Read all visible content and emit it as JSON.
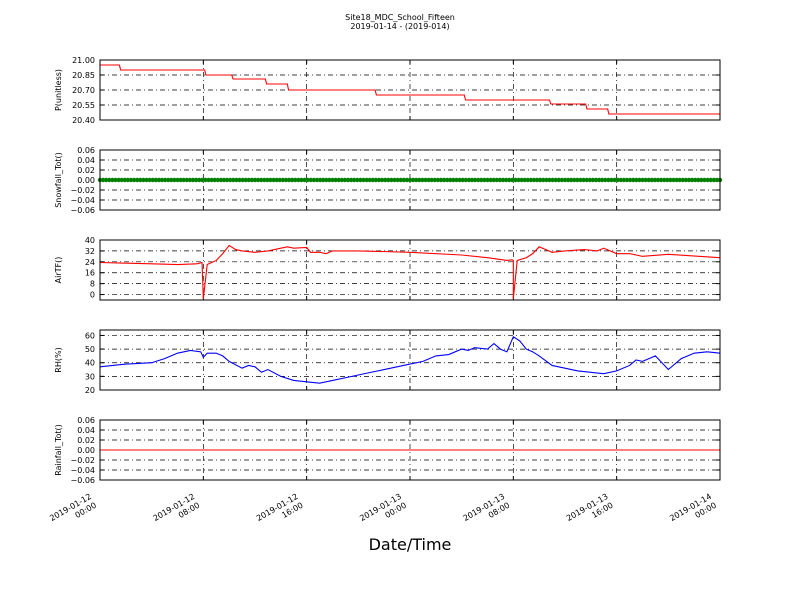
{
  "title": "Site18_MDC_School_Fifteen",
  "subtitle": "2019-01-14 - (2019-014)",
  "xlabel": "Date/Time",
  "x_ticks": [
    [
      "2019-01-12",
      "00:00"
    ],
    [
      "2019-01-12",
      "08:00"
    ],
    [
      "2019-01-12",
      "16:00"
    ],
    [
      "2019-01-13",
      "00:00"
    ],
    [
      "2019-01-13",
      "08:00"
    ],
    [
      "2019-01-13",
      "16:00"
    ],
    [
      "2019-01-14",
      "00:00"
    ]
  ],
  "chart_data": [
    {
      "type": "line",
      "ylabel": "P(unitless)",
      "ylim": [
        20.4,
        21.0
      ],
      "yticks": [
        20.4,
        20.55,
        20.7,
        20.85,
        21.0
      ],
      "ytick_labels": [
        "20.40",
        "20.55",
        "20.70",
        "20.85",
        "21.00"
      ],
      "color": "#ff0000",
      "grid": true,
      "x_hours": [
        0,
        1.5,
        1.6,
        8.1,
        8.2,
        10.2,
        10.3,
        12.8,
        12.9,
        14.5,
        14.6,
        21.3,
        21.4,
        28.2,
        28.3,
        34.8,
        34.9,
        37.6,
        37.7,
        39.3,
        39.4,
        48
      ],
      "values": [
        20.95,
        20.95,
        20.9,
        20.9,
        20.85,
        20.85,
        20.81,
        20.81,
        20.76,
        20.76,
        20.7,
        20.7,
        20.65,
        20.65,
        20.6,
        20.6,
        20.56,
        20.56,
        20.51,
        20.51,
        20.46,
        20.46
      ]
    },
    {
      "type": "scatter",
      "ylabel": "Snowfall_Tot()",
      "ylim": [
        -0.06,
        0.06
      ],
      "yticks": [
        -0.06,
        -0.04,
        -0.02,
        0.0,
        0.02,
        0.04,
        0.06
      ],
      "ytick_labels": [
        "−0.06",
        "−0.04",
        "−0.02",
        "0.00",
        "0.02",
        "0.04",
        "0.06"
      ],
      "color": "#008000",
      "grid": true,
      "x_range_hours": [
        0,
        48
      ],
      "constant_value": 0.0
    },
    {
      "type": "line",
      "ylabel": "AirTF()",
      "ylim": [
        -4,
        40
      ],
      "yticks": [
        0,
        8,
        16,
        24,
        32,
        40
      ],
      "ytick_labels": [
        "0",
        "8",
        "16",
        "24",
        "32",
        "40"
      ],
      "color": "#ff0000",
      "grid": true,
      "x_hours": [
        0,
        2,
        4,
        6,
        7.5,
        7.9,
        8.0,
        8.3,
        9.0,
        9.5,
        10.0,
        10.5,
        11.0,
        12.0,
        13.0,
        14.0,
        14.5,
        15.0,
        16.0,
        16.3,
        17.0,
        17.5,
        18.0,
        20.0,
        24.0,
        28.0,
        32.0,
        30.0,
        31.5,
        31.9,
        32.0,
        32.3,
        33.0,
        33.5,
        34.0,
        34.5,
        35.0,
        36.0,
        37.5,
        38.5,
        39.0,
        40.0,
        41.0,
        41.5,
        42.0,
        44.0,
        48.0
      ],
      "values": [
        23.5,
        23,
        22.5,
        22,
        22.5,
        23.5,
        -3,
        22,
        25,
        30,
        36,
        33,
        32,
        31,
        32,
        34,
        35,
        34,
        34.5,
        31,
        31,
        30,
        32,
        32,
        31,
        29,
        25,
        27,
        25,
        25.5,
        -3,
        25,
        27,
        30,
        35,
        33,
        31,
        32,
        33,
        32,
        34,
        30,
        30,
        29,
        28,
        29.5,
        27
      ],
      "series_note_sorted": true
    },
    {
      "type": "line",
      "ylabel": "RH(%)",
      "ylim": [
        20,
        64
      ],
      "yticks": [
        20,
        30,
        40,
        50,
        60
      ],
      "ytick_labels": [
        "20",
        "30",
        "40",
        "50",
        "60"
      ],
      "color": "#0000ff",
      "grid": true,
      "x_hours": [
        0,
        1,
        2,
        3,
        4,
        5,
        6,
        7,
        7.8,
        8.0,
        8.3,
        9.0,
        9.5,
        10,
        11,
        11.5,
        12,
        12.5,
        13,
        14,
        15,
        16,
        17,
        18,
        19,
        20,
        21,
        22,
        23,
        24,
        25,
        26,
        27,
        28,
        28.5,
        29,
        30,
        30.5,
        31,
        31.5,
        32,
        32.5,
        33,
        33.5,
        34,
        35,
        36,
        37,
        38,
        39,
        40,
        41,
        41.5,
        42,
        42.5,
        43,
        44,
        45,
        46,
        47,
        48
      ],
      "values": [
        37,
        38,
        39,
        39.5,
        40,
        43,
        47,
        49,
        48,
        44,
        47,
        47,
        45,
        41,
        36,
        38,
        37,
        33,
        35,
        30,
        27,
        26,
        25,
        27,
        29,
        31,
        33,
        35,
        37,
        39,
        41,
        45,
        46,
        50,
        49,
        51,
        50,
        54,
        50,
        48,
        59,
        56,
        50,
        48,
        45,
        38,
        36,
        34,
        33,
        32,
        34,
        38,
        42,
        41,
        43,
        45,
        35,
        43,
        47,
        48,
        47
      ],
      "series_note_sorted": true
    },
    {
      "type": "line",
      "ylabel": "Rainfall_Tot()",
      "ylim": [
        -0.06,
        0.06
      ],
      "yticks": [
        -0.06,
        -0.04,
        -0.02,
        0.0,
        0.02,
        0.04,
        0.06
      ],
      "ytick_labels": [
        "−0.06",
        "−0.04",
        "−0.02",
        "0.00",
        "0.02",
        "0.04",
        "0.06"
      ],
      "color": "#ff0000",
      "grid": true,
      "x_hours": [
        0,
        48
      ],
      "values": [
        0.0,
        0.0
      ]
    }
  ]
}
